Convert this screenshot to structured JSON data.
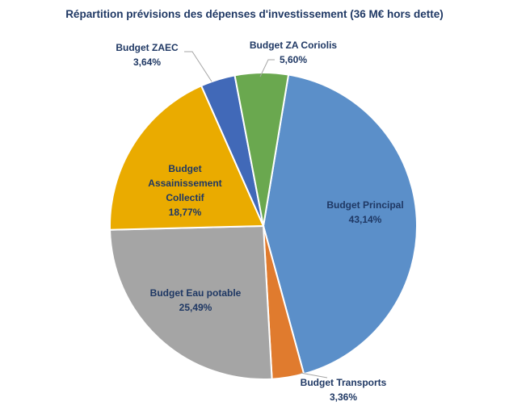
{
  "chart_data": {
    "type": "pie",
    "title": "Répartition prévisions des dépenses d'investissement (36 M€ hors dette)",
    "slices": [
      {
        "name": "Budget Principal",
        "label_lines": [
          "Budget Principal"
        ],
        "value": 43.14,
        "value_label": "43,14%",
        "color": "#5B8FC9"
      },
      {
        "name": "Budget Transports",
        "label_lines": [
          "Budget Transports"
        ],
        "value": 3.36,
        "value_label": "3,36%",
        "color": "#E07B2E"
      },
      {
        "name": "Budget Eau potable",
        "label_lines": [
          "Budget Eau potable"
        ],
        "value": 25.49,
        "value_label": "25,49%",
        "color": "#A5A5A5"
      },
      {
        "name": "Budget Assainissement Collectif",
        "label_lines": [
          "Budget",
          "Assainissement",
          "Collectif"
        ],
        "value": 18.77,
        "value_label": "18,77%",
        "color": "#EAAB00"
      },
      {
        "name": "Budget ZAEC",
        "label_lines": [
          "Budget ZAEC"
        ],
        "value": 3.64,
        "value_label": "3,64%",
        "color": "#4169B8"
      },
      {
        "name": "Budget ZA Coriolis",
        "label_lines": [
          "Budget ZA Coriolis"
        ],
        "value": 5.6,
        "value_label": "5,60%",
        "color": "#6AA84F"
      }
    ],
    "legend": "none"
  }
}
